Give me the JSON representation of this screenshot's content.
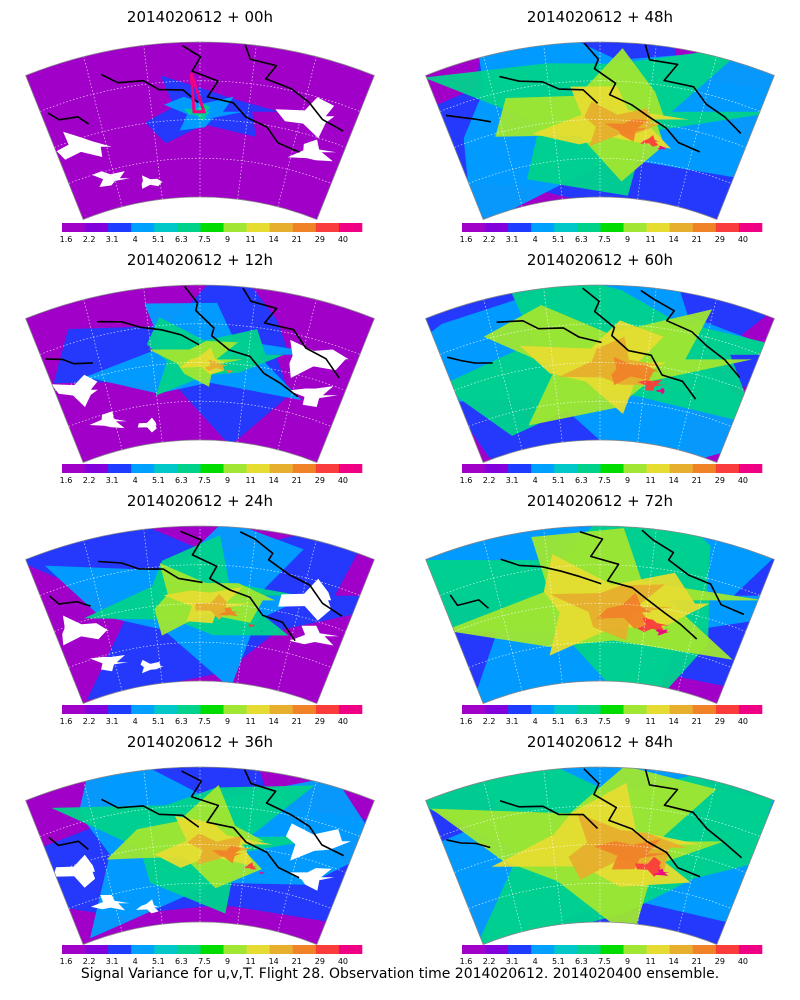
{
  "caption": "Signal Variance for u,v,T. Flight 28. Observation time 2014020612. 2014020400 ensemble.",
  "colorbar": {
    "colors": [
      "#a000c8",
      "#8200dc",
      "#1e3cff",
      "#00a0ff",
      "#00c8c8",
      "#00d28c",
      "#00dc00",
      "#a0e632",
      "#e6dc32",
      "#e6af2d",
      "#f08228",
      "#fa3c3c",
      "#f00082"
    ],
    "labels": [
      "1.6",
      "2.2",
      "3.1",
      "4",
      "5.1",
      "6.3",
      "7.5",
      "9",
      "11",
      "14",
      "21",
      "29",
      "40"
    ]
  },
  "panels": [
    {
      "title": "2014020612 + 00h",
      "intensity": 0.15,
      "whitePatches": true,
      "flightTrack": true
    },
    {
      "title": "2014020612 + 48h",
      "intensity": 0.65,
      "whitePatches": false,
      "flightTrack": false
    },
    {
      "title": "2014020612 + 12h",
      "intensity": 0.35,
      "whitePatches": true,
      "flightTrack": false
    },
    {
      "title": "2014020612 + 60h",
      "intensity": 0.72,
      "whitePatches": false,
      "flightTrack": false
    },
    {
      "title": "2014020612 + 24h",
      "intensity": 0.45,
      "whitePatches": true,
      "flightTrack": false
    },
    {
      "title": "2014020612 + 72h",
      "intensity": 0.8,
      "whitePatches": false,
      "flightTrack": false
    },
    {
      "title": "2014020612 + 36h",
      "intensity": 0.55,
      "whitePatches": true,
      "flightTrack": false
    },
    {
      "title": "2014020612 + 84h",
      "intensity": 0.85,
      "whitePatches": false,
      "flightTrack": false
    }
  ]
}
